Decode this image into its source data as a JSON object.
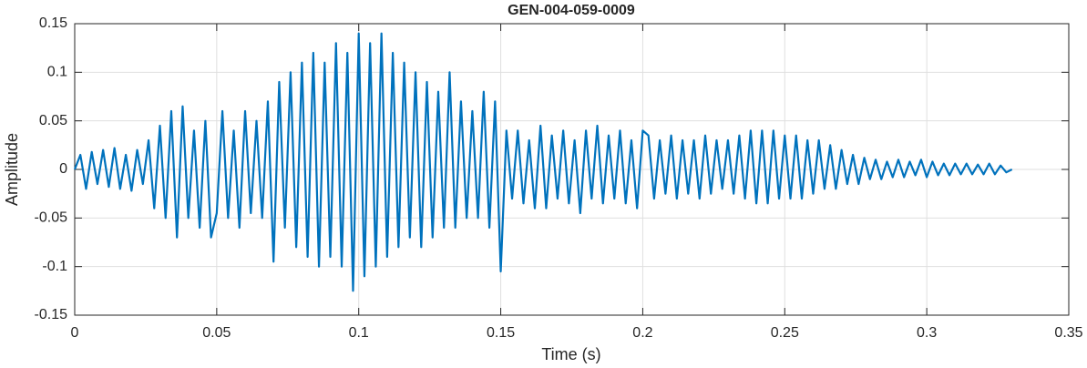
{
  "chart_data": {
    "type": "line",
    "title": "GEN-004-059-0009",
    "x_label": "Time (s)",
    "y_label": "Amplitude",
    "x": [
      0,
      0.002,
      0.004,
      0.006,
      0.008,
      0.01,
      0.012,
      0.014,
      0.016,
      0.018,
      0.02,
      0.022,
      0.024,
      0.026,
      0.028,
      0.03,
      0.032,
      0.034,
      0.036,
      0.038,
      0.04,
      0.042,
      0.044,
      0.046,
      0.048,
      0.05,
      0.052,
      0.054,
      0.056,
      0.058,
      0.06,
      0.062,
      0.064,
      0.066,
      0.068,
      0.07,
      0.072,
      0.074,
      0.076,
      0.078,
      0.08,
      0.082,
      0.084,
      0.086,
      0.088,
      0.09,
      0.092,
      0.094,
      0.096,
      0.098,
      0.1,
      0.102,
      0.104,
      0.106,
      0.108,
      0.11,
      0.112,
      0.114,
      0.116,
      0.118,
      0.12,
      0.122,
      0.124,
      0.126,
      0.128,
      0.13,
      0.132,
      0.134,
      0.136,
      0.138,
      0.14,
      0.142,
      0.144,
      0.146,
      0.148,
      0.15,
      0.152,
      0.154,
      0.156,
      0.158,
      0.16,
      0.162,
      0.164,
      0.166,
      0.168,
      0.17,
      0.172,
      0.174,
      0.176,
      0.178,
      0.18,
      0.182,
      0.184,
      0.186,
      0.188,
      0.19,
      0.192,
      0.194,
      0.196,
      0.198,
      0.2,
      0.202,
      0.204,
      0.206,
      0.208,
      0.21,
      0.212,
      0.214,
      0.216,
      0.218,
      0.22,
      0.222,
      0.224,
      0.226,
      0.228,
      0.23,
      0.232,
      0.234,
      0.236,
      0.238,
      0.24,
      0.242,
      0.244,
      0.246,
      0.248,
      0.25,
      0.252,
      0.254,
      0.256,
      0.258,
      0.26,
      0.262,
      0.264,
      0.266,
      0.268,
      0.27,
      0.272,
      0.274,
      0.276,
      0.278,
      0.28,
      0.282,
      0.284,
      0.286,
      0.288,
      0.29,
      0.292,
      0.294,
      0.296,
      0.298,
      0.3,
      0.302,
      0.304,
      0.306,
      0.308,
      0.31,
      0.312,
      0.314,
      0.316,
      0.318,
      0.32,
      0.322,
      0.324,
      0.326,
      0.328,
      0.33
    ],
    "values": [
      0,
      0.015,
      -0.02,
      0.018,
      -0.015,
      0.02,
      -0.018,
      0.022,
      -0.02,
      0.015,
      -0.022,
      0.02,
      -0.015,
      0.03,
      -0.04,
      0.045,
      -0.05,
      0.06,
      -0.07,
      0.065,
      -0.05,
      0.04,
      -0.06,
      0.05,
      -0.07,
      -0.045,
      0.06,
      -0.05,
      0.04,
      -0.06,
      0.06,
      -0.045,
      0.05,
      -0.05,
      0.07,
      -0.095,
      0.09,
      -0.06,
      0.1,
      -0.08,
      0.11,
      -0.09,
      0.12,
      -0.1,
      0.11,
      -0.09,
      0.13,
      -0.1,
      0.12,
      -0.125,
      0.14,
      -0.11,
      0.13,
      -0.1,
      0.14,
      -0.09,
      0.12,
      -0.08,
      0.11,
      -0.07,
      0.1,
      -0.08,
      0.09,
      -0.07,
      0.08,
      -0.06,
      0.1,
      -0.06,
      0.07,
      -0.05,
      0.06,
      -0.05,
      0.08,
      -0.06,
      0.07,
      -0.105,
      0.04,
      -0.03,
      0.04,
      -0.035,
      0.03,
      -0.04,
      0.045,
      -0.04,
      0.035,
      -0.03,
      0.04,
      -0.035,
      0.03,
      -0.045,
      0.04,
      -0.03,
      0.045,
      -0.035,
      0.035,
      -0.03,
      0.04,
      -0.035,
      0.03,
      -0.04,
      0.04,
      0.035,
      -0.03,
      0.03,
      -0.025,
      0.035,
      -0.03,
      0.03,
      -0.025,
      0.03,
      -0.03,
      0.035,
      -0.025,
      0.03,
      -0.02,
      0.03,
      -0.025,
      0.035,
      -0.03,
      0.04,
      -0.035,
      0.04,
      -0.035,
      0.04,
      -0.03,
      0.035,
      -0.03,
      0.035,
      -0.03,
      0.03,
      -0.025,
      0.03,
      -0.02,
      0.025,
      -0.02,
      0.02,
      -0.015,
      0.015,
      -0.015,
      0.012,
      -0.01,
      0.01,
      -0.01,
      0.008,
      -0.008,
      0.01,
      -0.008,
      0.008,
      -0.006,
      0.01,
      -0.008,
      0.008,
      -0.006,
      0.006,
      -0.006,
      0.006,
      -0.005,
      0.006,
      -0.005,
      0.005,
      -0.005,
      0.006,
      -0.005,
      0.004,
      -0.003,
      0
    ],
    "color": "#0072bd",
    "xlim": [
      0,
      0.35
    ],
    "xticks": [
      0,
      0.05,
      0.1,
      0.15,
      0.2,
      0.25,
      0.3,
      0.35
    ],
    "ylim": [
      -0.15,
      0.15
    ],
    "yticks": [
      -0.15,
      -0.1,
      -0.05,
      0,
      0.05,
      0.1,
      0.15
    ],
    "grid": true
  }
}
